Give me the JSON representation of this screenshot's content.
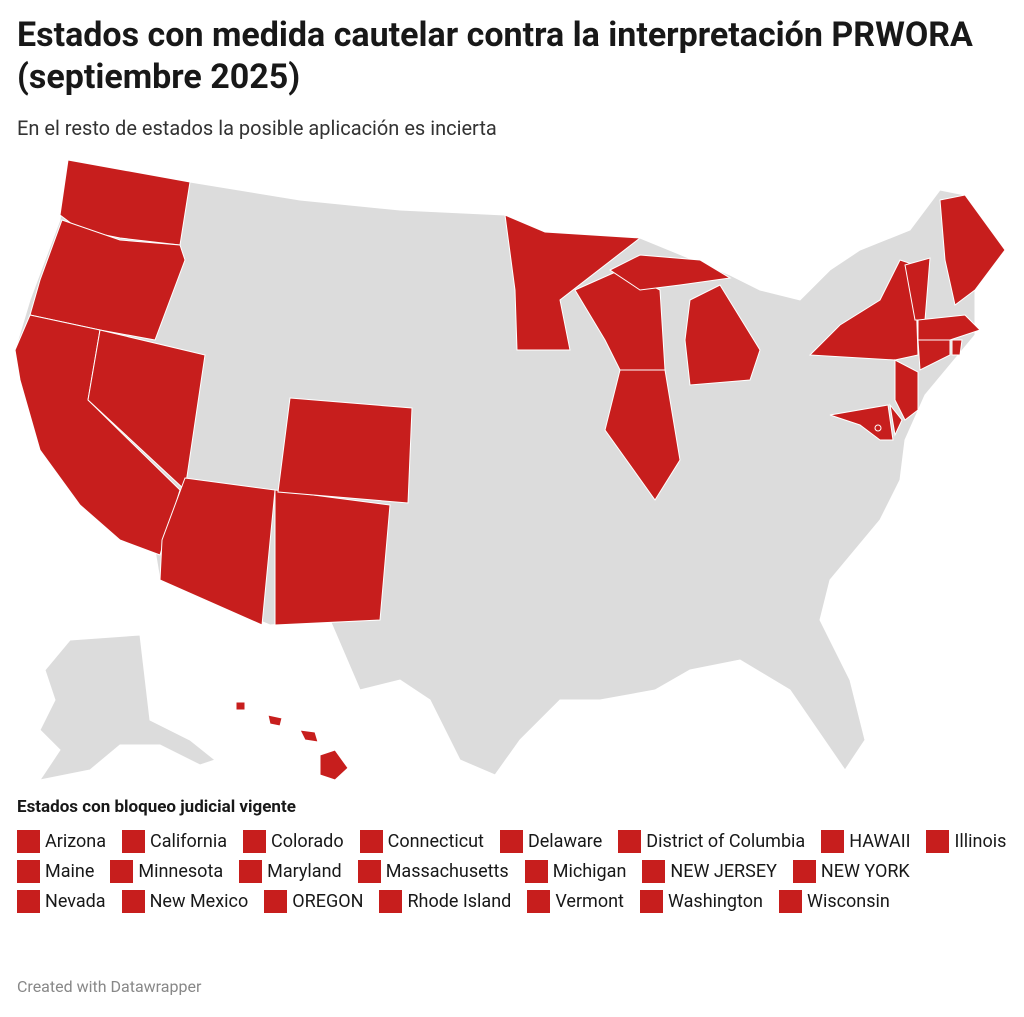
{
  "header": {
    "title": "Estados con medida cautelar contra la interpretación PRWORA (septiembre 2025)",
    "subtitle": "En el resto de estados la posible aplicación es incierta"
  },
  "map": {
    "base_color": "#dcdcdc",
    "highlight_color": "#c71e1d"
  },
  "legend": {
    "title": "Estados con bloqueo judicial vigente",
    "items": [
      "Arizona",
      "California",
      "Colorado",
      "Connecticut",
      "Delaware",
      "District of Columbia",
      "HAWAII",
      "Illinois",
      "Maine",
      "Minnesota",
      "Maryland",
      "Massachusetts",
      "Michigan",
      "NEW JERSEY",
      "NEW YORK",
      "Nevada",
      "New Mexico",
      "OREGON",
      "Rhode Island",
      "Vermont",
      "Washington",
      "Wisconsin"
    ]
  },
  "footer": "Created with Datawrapper"
}
